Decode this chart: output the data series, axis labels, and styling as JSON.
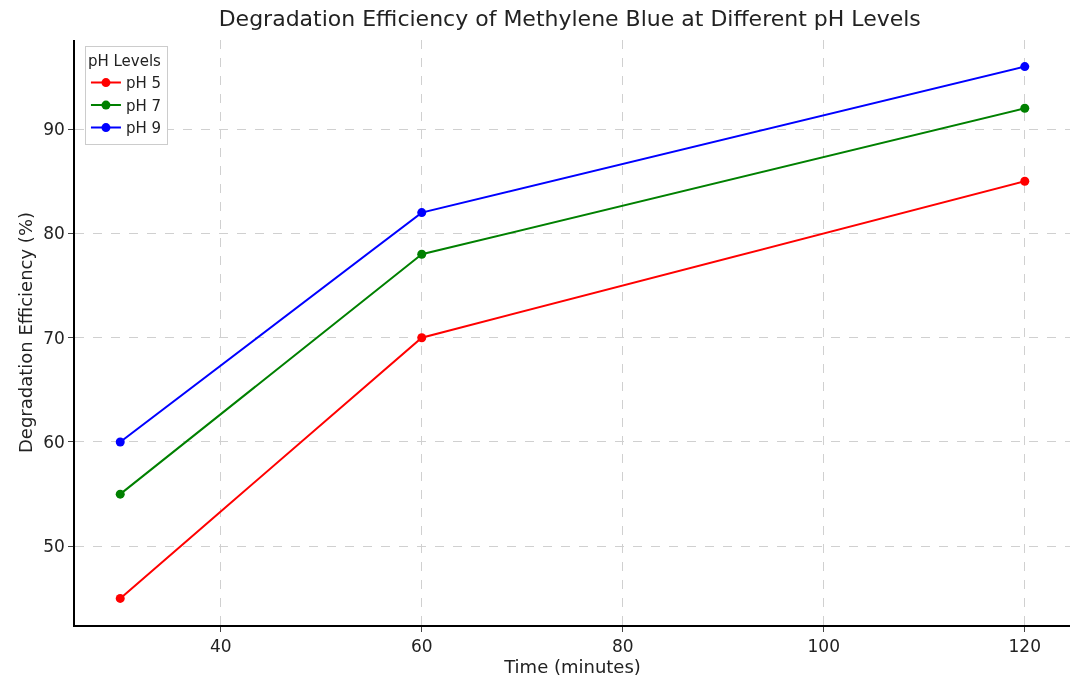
{
  "chart_data": {
    "type": "line",
    "title": "Degradation Efficiency of Methylene Blue at Different pH Levels",
    "xlabel": "Time (minutes)",
    "ylabel": "Degradation Efficiency (%)",
    "legend_title": "pH Levels",
    "x": [
      30,
      60,
      120
    ],
    "series": [
      {
        "name": "pH 5",
        "color": "#ff0000",
        "values": [
          45,
          70,
          85
        ]
      },
      {
        "name": "pH 7",
        "color": "#008000",
        "values": [
          55,
          78,
          92
        ]
      },
      {
        "name": "pH 9",
        "color": "#0000ff",
        "values": [
          60,
          82,
          96
        ]
      }
    ],
    "xlim": [
      25.5,
      124.5
    ],
    "xticks": [
      40,
      60,
      80,
      100,
      120
    ],
    "ylim": [
      42.45,
      98.55
    ],
    "yticks": [
      50,
      60,
      70,
      80,
      90
    ],
    "grid": true,
    "legend": "top left",
    "marker": "circle",
    "line_style": "solid"
  }
}
